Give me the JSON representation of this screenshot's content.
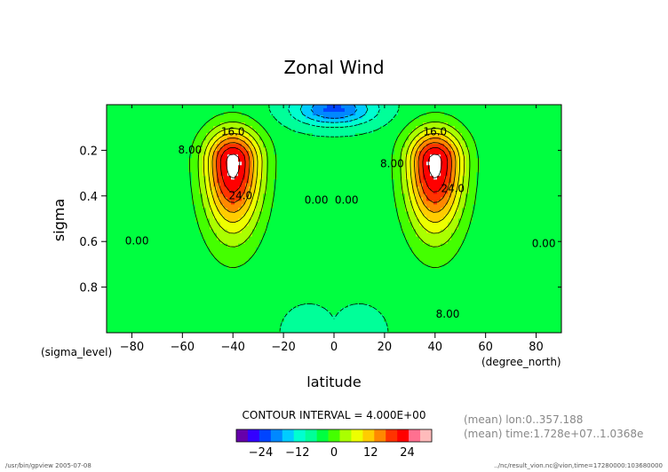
{
  "chart_data": {
    "type": "heatmap",
    "title": "Zonal Wind",
    "xlabel": "latitude",
    "ylabel": "sigma",
    "x_unit_label": "(degree_north)",
    "y_unit_label": "(sigma_level)",
    "xlim": [
      -90,
      90
    ],
    "ylim": [
      1.0,
      0.0
    ],
    "x_ticks": [
      -80,
      -60,
      -40,
      -20,
      0,
      20,
      40,
      60,
      80
    ],
    "y_ticks": [
      0.2,
      0.4,
      0.6,
      0.8
    ],
    "contour_interval_text": "CONTOUR INTERVAL = 4.000E+00",
    "contour_interval": 4.0,
    "contour_labels": [
      {
        "text": "16.0",
        "lat": -40,
        "sigma": 0.12
      },
      {
        "text": "24.0",
        "lat": -37,
        "sigma": 0.4
      },
      {
        "text": "8.00",
        "lat": -57,
        "sigma": 0.2
      },
      {
        "text": "0.00",
        "lat": -78,
        "sigma": 0.6
      },
      {
        "text": "0.00",
        "lat": -7,
        "sigma": 0.42
      },
      {
        "text": "0.00",
        "lat": 5,
        "sigma": 0.42
      },
      {
        "text": "16.0",
        "lat": 40,
        "sigma": 0.12
      },
      {
        "text": "24.0",
        "lat": 47,
        "sigma": 0.37
      },
      {
        "text": "8.00",
        "lat": 23,
        "sigma": 0.26
      },
      {
        "text": "0.00",
        "lat": 83,
        "sigma": 0.61
      },
      {
        "text": "8.00",
        "lat": 45,
        "sigma": 0.92
      }
    ],
    "jets": [
      {
        "lat": -40,
        "sigma": 0.25,
        "max_speed": 30
      },
      {
        "lat": 40,
        "sigma": 0.25,
        "max_speed": 30
      }
    ],
    "colorbar": {
      "tick_labels": [
        "−24",
        "−12",
        "0",
        "12",
        "24"
      ],
      "tick_values": [
        -24,
        -12,
        0,
        12,
        24
      ],
      "range": [
        -32,
        32
      ],
      "colors": [
        "#6600aa",
        "#3300ff",
        "#0044ff",
        "#0088ff",
        "#00ccff",
        "#00ffd0",
        "#00ff99",
        "#00ff40",
        "#44ff00",
        "#aaff00",
        "#eeff00",
        "#ffcc00",
        "#ff8800",
        "#ff3300",
        "#ff0000",
        "#ff7090",
        "#ffbbbb"
      ]
    },
    "mean_lines": [
      "(mean) lon:0..357.188",
      "(mean) time:1.728e+07..1.0368e"
    ],
    "footer_left": "/usr/bin/gpview  2005-07-08",
    "footer_right": "../nc/result_vion.nc@vion,time=17280000:103680000"
  }
}
